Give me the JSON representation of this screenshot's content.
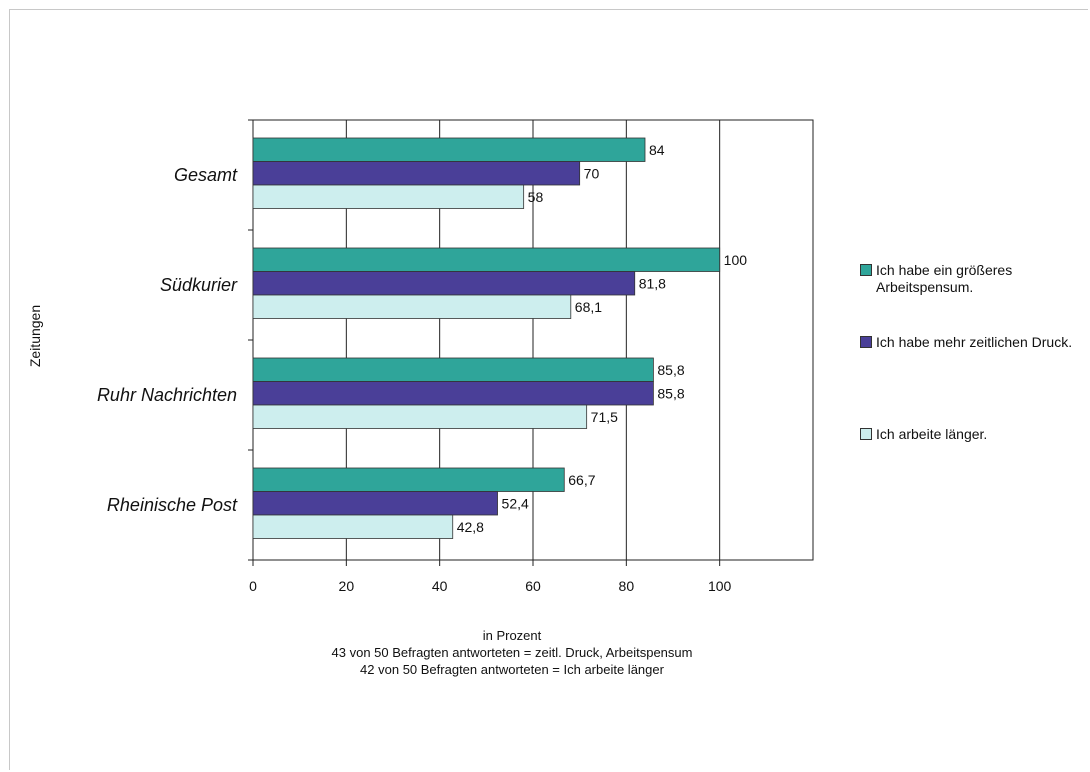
{
  "chart_data": {
    "type": "bar",
    "orientation": "horizontal",
    "ylabel": "Zeitungen",
    "categories": [
      "Gesamt",
      "Südkurier",
      "Ruhr Nachrichten",
      "Rheinische Post"
    ],
    "series": [
      {
        "name": "Ich habe ein größeres Arbeitspensum.",
        "color": "#2fa59a",
        "values": [
          84,
          100,
          85.8,
          66.7
        ],
        "labels": [
          "84",
          "100",
          "85,8",
          "66,7"
        ]
      },
      {
        "name": "Ich habe mehr zeitlichen Druck.",
        "color": "#4a3f98",
        "values": [
          70,
          81.8,
          85.8,
          52.4
        ],
        "labels": [
          "70",
          "81,8",
          "85,8",
          "52,4"
        ]
      },
      {
        "name": "Ich arbeite länger.",
        "color": "#cdeeee",
        "values": [
          58,
          68.1,
          71.5,
          42.8
        ],
        "labels": [
          "58",
          "68,1",
          "71,5",
          "42,8"
        ]
      }
    ],
    "xticks": [
      "0",
      "20",
      "40",
      "60",
      "80",
      "100"
    ],
    "xlim": [
      0,
      120
    ],
    "grid": true,
    "legend": "right",
    "caption": [
      "in Prozent",
      "43 von 50 Befragten antworteten = zeitl. Druck, Arbeitspensum",
      "42 von 50 Befragten antworteten = Ich arbeite länger"
    ]
  }
}
